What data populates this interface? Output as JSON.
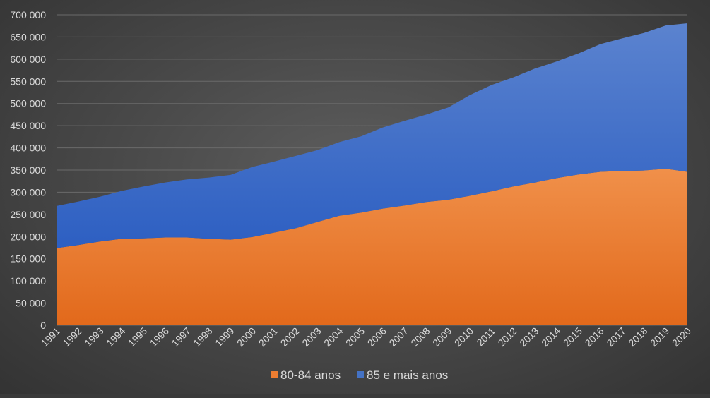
{
  "chart_data": {
    "type": "area",
    "stacked": true,
    "categories": [
      "1991",
      "1992",
      "1993",
      "1994",
      "1995",
      "1996",
      "1997",
      "1998",
      "1999",
      "2000",
      "2001",
      "2002",
      "2003",
      "2004",
      "2005",
      "2006",
      "2007",
      "2008",
      "2009",
      "2010",
      "2011",
      "2012",
      "2013",
      "2014",
      "2015",
      "2016",
      "2017",
      "2018",
      "2019",
      "2020"
    ],
    "series": [
      {
        "name": "80-84 anos",
        "color": "#ed7d31",
        "values": [
          174000,
          181000,
          189000,
          195000,
          196000,
          198000,
          198000,
          195000,
          193000,
          199000,
          209000,
          219000,
          233000,
          247000,
          254000,
          263000,
          270000,
          278000,
          283000,
          292000,
          302000,
          313000,
          322000,
          332000,
          340000,
          346000,
          348000,
          349000,
          353000,
          346000
        ]
      },
      {
        "name": "85 e mais anos",
        "color": "#4472c4",
        "values": [
          95000,
          98000,
          101000,
          108000,
          117000,
          124000,
          131000,
          138000,
          146000,
          158000,
          160000,
          163000,
          162000,
          166000,
          172000,
          183000,
          191000,
          197000,
          208000,
          227000,
          240000,
          246000,
          257000,
          263000,
          273000,
          288000,
          299000,
          310000,
          323000,
          335000
        ]
      }
    ],
    "ylim": [
      0,
      700000
    ],
    "yticks": [
      "0",
      "50 000",
      "100 000",
      "150 000",
      "200 000",
      "250 000",
      "300 000",
      "350 000",
      "400 000",
      "450 000",
      "500 000",
      "550 000",
      "600 000",
      "650 000",
      "700 000"
    ],
    "grid": true,
    "legend": "bottom"
  }
}
